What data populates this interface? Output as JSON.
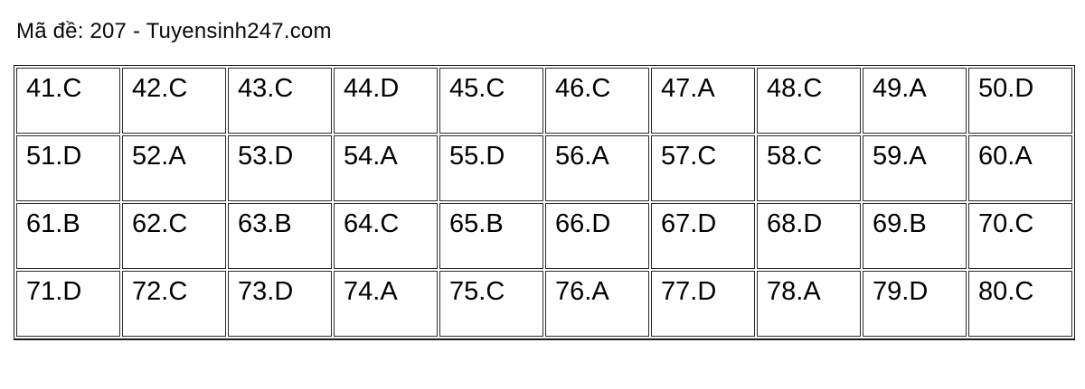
{
  "page": {
    "background_color": "#ffffff",
    "text_color": "#000000",
    "border_color": "#1a1a1a"
  },
  "header": {
    "title": "Mã đề: 207 - Tuyensinh247.com",
    "exam_code": "207",
    "source": "Tuyensinh247.com"
  },
  "answer_table": {
    "rows": [
      [
        "41.C",
        "42.C",
        "43.C",
        "44.D",
        "45.C",
        "46.C",
        "47.A",
        "48.C",
        "49.A",
        "50.D"
      ],
      [
        "51.D",
        "52.A",
        "53.D",
        "54.A",
        "55.D",
        "56.A",
        "57.C",
        "58.C",
        "59.A",
        "60.A"
      ],
      [
        "61.B",
        "62.C",
        "63.B",
        "64.C",
        "65.B",
        "66.D",
        "67.D",
        "68.D",
        "69.B",
        "70.C"
      ],
      [
        "71.D",
        "72.C",
        "73.D",
        "74.A",
        "75.C",
        "76.A",
        "77.D",
        "78.A",
        "79.D",
        "80.C"
      ]
    ]
  }
}
